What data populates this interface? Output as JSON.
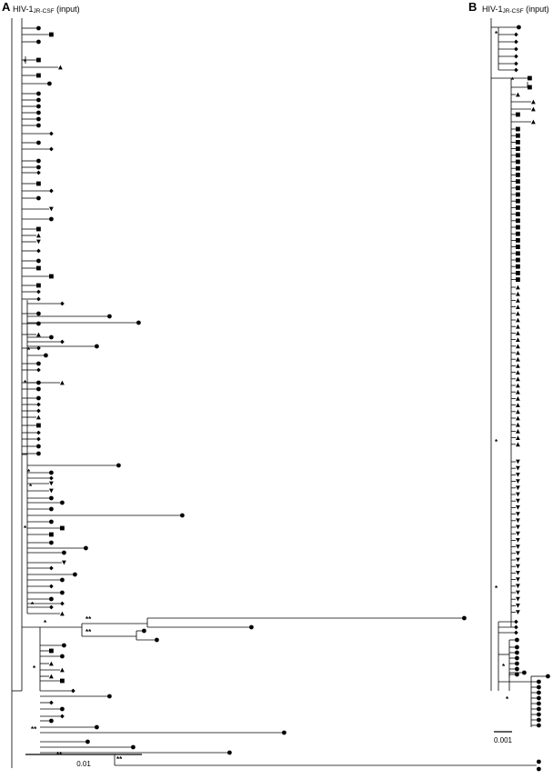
{
  "panels": {
    "a": {
      "letter": "A",
      "title_main": "HIV-1",
      "title_sub": "JR-CSF",
      "title_tail": " (input)",
      "scale_label": "0.01",
      "support_single": "*",
      "support_double": "**"
    },
    "b": {
      "letter": "B",
      "title_main": "HIV-1",
      "title_sub": "JR-CSF",
      "title_tail": " (input)",
      "scale_label": "0.001",
      "support_single": "*"
    }
  },
  "legend_symbols": [
    "circle",
    "square",
    "diamond",
    "triangle-up",
    "triangle-down"
  ],
  "colors": {
    "ink": "#000000",
    "background": "#ffffff"
  }
}
